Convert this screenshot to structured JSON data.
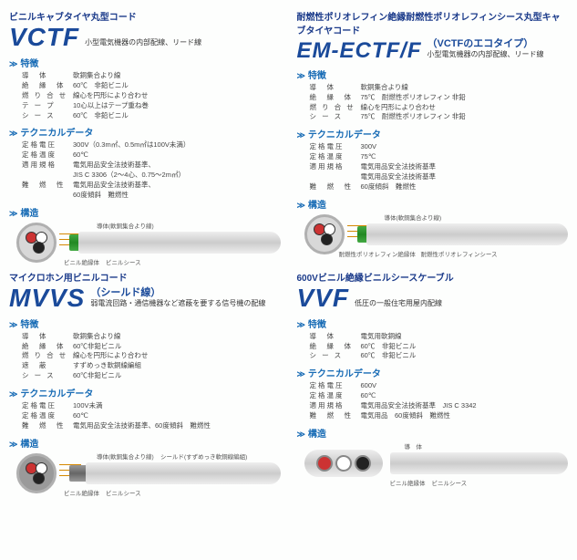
{
  "cards": [
    {
      "category": "ビニルキャブタイヤ丸型コード",
      "prod": "VCTF",
      "sub": "小型電気機器の内部配線、リード線",
      "eco": "",
      "features": [
        {
          "k": "導　体",
          "v": "軟銅集合より線"
        },
        {
          "k": "絶　縁　体",
          "v": "60℃　非鉛ビニル"
        },
        {
          "k": "燃 り 合 せ",
          "v": "線心を円形により合わせ"
        },
        {
          "k": "テ ー プ",
          "v": "10心以上はテープ重ね巻"
        },
        {
          "k": "シ ー ス",
          "v": "60℃　非鉛ビニル"
        }
      ],
      "tech": [
        {
          "k": "定格電圧",
          "v": "300V（0.3m㎡、0.5m㎡は100V未満）"
        },
        {
          "k": "定格温度",
          "v": "60℃"
        },
        {
          "k": "適用規格",
          "v": "電気用品安全法技術基準、"
        },
        {
          "k": "",
          "v": "JIS C 3306（2〜4心、0.75〜2m㎡）"
        },
        {
          "k": "難　燃　性",
          "v": "電気用品安全法技術基準、"
        },
        {
          "k": "",
          "v": "60度傾斜　難燃性"
        }
      ],
      "struct_labels": {
        "l1": "導体(軟銅集合より線)",
        "l2": "ビニル絶縁体",
        "l3": "ビニルシース"
      },
      "colors": {
        "accent": "#1a4a9a"
      }
    },
    {
      "category": "耐燃性ポリオレフィン絶縁耐燃性ポリオレフィンシース丸型キャブタイヤコード",
      "prod": "EM-ECTF/F",
      "eco": "（VCTFのエコタイプ）",
      "sub": "小型電気機器の内部配線、リード線",
      "features": [
        {
          "k": "導　体",
          "v": "軟銅集合より線"
        },
        {
          "k": "絶　縁　体",
          "v": "75℃　耐燃性ポリオレフィン 非鉛"
        },
        {
          "k": "燃 り 合 せ",
          "v": "線心を円形により合わせ"
        },
        {
          "k": "シ ー ス",
          "v": "75℃　耐燃性ポリオレフィン 非鉛"
        }
      ],
      "tech": [
        {
          "k": "定格電圧",
          "v": "300V"
        },
        {
          "k": "定格温度",
          "v": "75℃"
        },
        {
          "k": "適用規格",
          "v": "電気用品安全法技術基準"
        },
        {
          "k": "",
          "v": "電気用品安全法技術基準"
        },
        {
          "k": "難　燃　性",
          "v": "60度傾斜　難燃性"
        }
      ],
      "struct_labels": {
        "l1": "導体(軟銅集合より線)",
        "l2": "耐燃性ポリオレフィン絶縁体",
        "l3": "耐燃性ポリオレフィンシース"
      }
    },
    {
      "category": "マイクロホン用ビニルコード",
      "prod": "MVVS",
      "eco": "（シールド線）",
      "sub": "弱電流回路・通信機器など遮蔽を要する信号機の配線",
      "features": [
        {
          "k": "導　体",
          "v": "軟銅集合より線"
        },
        {
          "k": "絶　縁　体",
          "v": "60℃非鉛ビニル"
        },
        {
          "k": "燃 り 合 せ",
          "v": "線心を円形により合わせ"
        },
        {
          "k": "遮　蔽",
          "v": "すずめっき軟銅線編組"
        },
        {
          "k": "シ ー ス",
          "v": "60℃非鉛ビニル"
        }
      ],
      "tech": [
        {
          "k": "定格電圧",
          "v": "100V未満"
        },
        {
          "k": "定格温度",
          "v": "60℃"
        },
        {
          "k": "難　燃　性",
          "v": "電気用品安全法技術基準、60度傾斜　難燃性"
        }
      ],
      "struct_labels": {
        "l1": "導体(軟銅集合より線)",
        "l2": "ビニル絶縁体",
        "l3": "ビニルシース",
        "shield": "シールド(すずめっき軟銅線編組)"
      }
    },
    {
      "category": "600Vビニル絶縁ビニルシースケーブル",
      "prod": "VVF",
      "eco": "",
      "sub": "低圧の一般住宅用屋内配線",
      "features": [
        {
          "k": "導　体",
          "v": "電気用軟銅線"
        },
        {
          "k": "絶　縁　体",
          "v": "60℃　非鉛ビニル"
        },
        {
          "k": "シ ー ス",
          "v": "60℃　非鉛ビニル"
        }
      ],
      "tech": [
        {
          "k": "定格電圧",
          "v": "600V"
        },
        {
          "k": "定格温度",
          "v": "60℃"
        },
        {
          "k": "適用規格",
          "v": "電気用品安全法技術基準　JIS C 3342"
        },
        {
          "k": "難　燃　性",
          "v": "電気用品　60度傾斜　難燃性"
        }
      ],
      "struct_labels": {
        "l1": "導　体",
        "l2": "ビニル絶縁体",
        "l3": "ビニルシース"
      }
    }
  ],
  "headings": {
    "feat": "特徴",
    "tech": "テクニカルデータ",
    "struct": "構造"
  }
}
